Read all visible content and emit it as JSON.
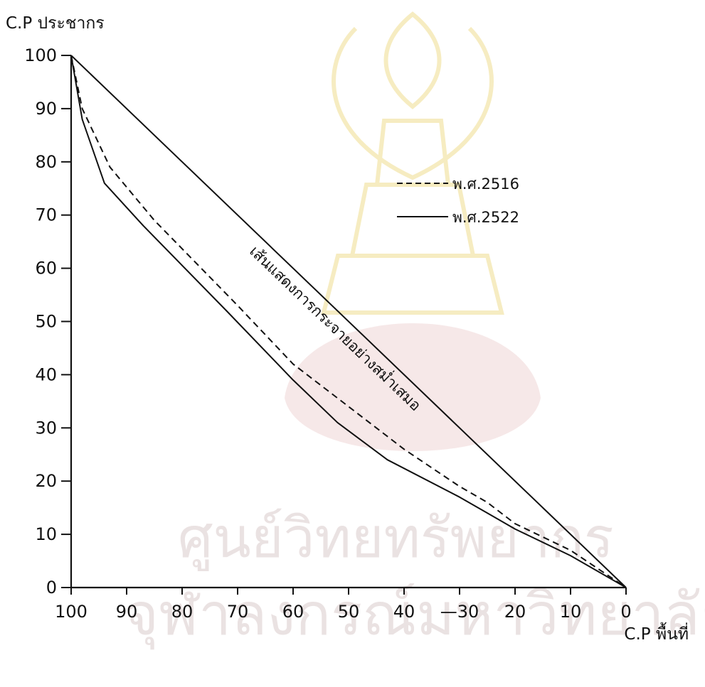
{
  "watermark": {
    "line1": "ศูนย์วิทยทรัพยากร",
    "line2": "จุฬาลงกรณ์มหาวิทยาลัย",
    "emblem": "chulalongkorn-university-emblem"
  },
  "chart_data": {
    "type": "line",
    "title": "",
    "xlabel": "C.P พื้นที่",
    "ylabel": "C.P ประชากร",
    "x_reversed": true,
    "xlim": [
      100,
      0
    ],
    "ylim": [
      0,
      100
    ],
    "x_ticks": [
      100,
      90,
      80,
      70,
      60,
      50,
      40,
      30,
      20,
      10,
      0
    ],
    "x_tick_labels": [
      "100",
      "90",
      "80",
      "70",
      "60",
      "50",
      "40",
      "—30",
      "20",
      "10",
      "0"
    ],
    "y_ticks": [
      0,
      10,
      20,
      30,
      40,
      50,
      60,
      70,
      80,
      90,
      100
    ],
    "grid": false,
    "legend_position": "upper-right",
    "annotation": "เส้นแสดงการกระจายอย่างสม่ำเสมอ",
    "series": [
      {
        "name": "พ.ศ.2516",
        "style": "dashed",
        "x": [
          100,
          98,
          93,
          85,
          70,
          60,
          50,
          40,
          30,
          25,
          20,
          10,
          0
        ],
        "y": [
          100,
          90,
          79,
          69,
          53,
          42,
          34,
          26,
          19,
          16,
          12,
          7,
          0
        ]
      },
      {
        "name": "พ.ศ.2522",
        "style": "solid",
        "x": [
          100,
          98,
          94,
          87,
          72,
          60,
          52,
          43,
          30,
          25,
          20,
          10,
          0
        ],
        "y": [
          100,
          88,
          76,
          68,
          52,
          39,
          31,
          24,
          17,
          14,
          11,
          6,
          0
        ]
      },
      {
        "name": "",
        "style": "solid",
        "x": [
          100,
          0
        ],
        "y": [
          100,
          0
        ]
      }
    ]
  }
}
